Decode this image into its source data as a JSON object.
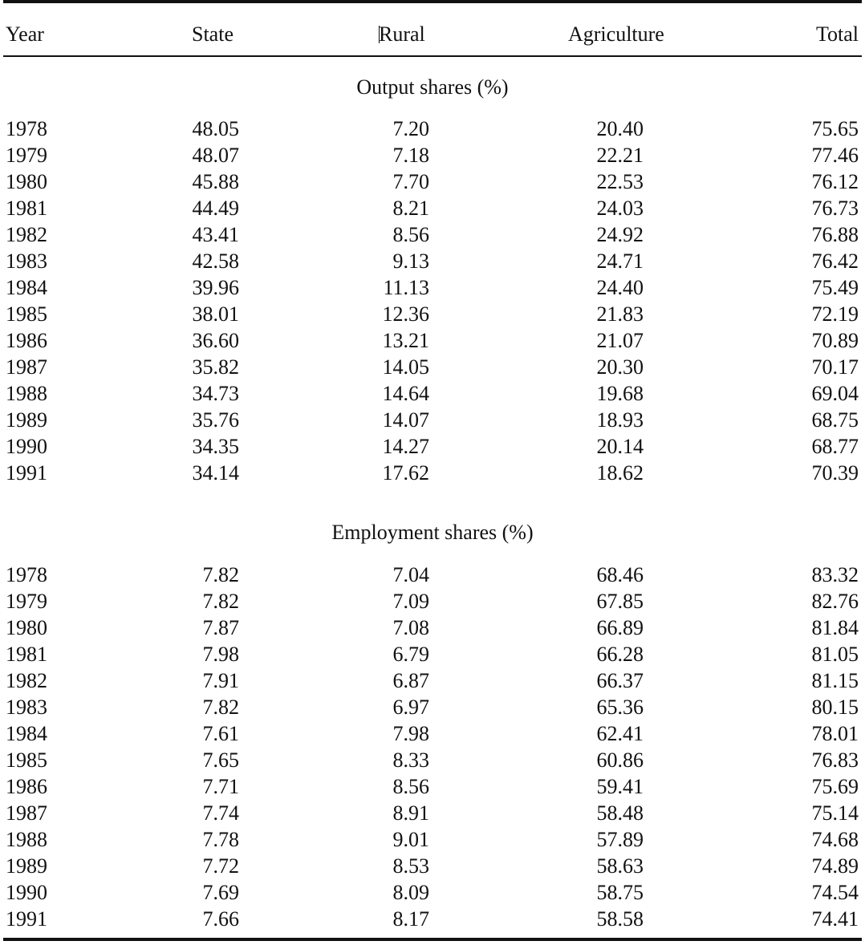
{
  "table": {
    "headers": {
      "year": "Year",
      "state": "State",
      "rural": "Rural",
      "agriculture": "Agriculture",
      "total": "Total"
    },
    "sections": [
      {
        "title": "Output shares (%)",
        "rows": [
          [
            "1978",
            "48.05",
            "7.20",
            "20.40",
            "75.65"
          ],
          [
            "1979",
            "48.07",
            "7.18",
            "22.21",
            "77.46"
          ],
          [
            "1980",
            "45.88",
            "7.70",
            "22.53",
            "76.12"
          ],
          [
            "1981",
            "44.49",
            "8.21",
            "24.03",
            "76.73"
          ],
          [
            "1982",
            "43.41",
            "8.56",
            "24.92",
            "76.88"
          ],
          [
            "1983",
            "42.58",
            "9.13",
            "24.71",
            "76.42"
          ],
          [
            "1984",
            "39.96",
            "11.13",
            "24.40",
            "75.49"
          ],
          [
            "1985",
            "38.01",
            "12.36",
            "21.83",
            "72.19"
          ],
          [
            "1986",
            "36.60",
            "13.21",
            "21.07",
            "70.89"
          ],
          [
            "1987",
            "35.82",
            "14.05",
            "20.30",
            "70.17"
          ],
          [
            "1988",
            "34.73",
            "14.64",
            "19.68",
            "69.04"
          ],
          [
            "1989",
            "35.76",
            "14.07",
            "18.93",
            "68.75"
          ],
          [
            "1990",
            "34.35",
            "14.27",
            "20.14",
            "68.77"
          ],
          [
            "1991",
            "34.14",
            "17.62",
            "18.62",
            "70.39"
          ]
        ]
      },
      {
        "title": "Employment shares (%)",
        "rows": [
          [
            "1978",
            "7.82",
            "7.04",
            "68.46",
            "83.32"
          ],
          [
            "1979",
            "7.82",
            "7.09",
            "67.85",
            "82.76"
          ],
          [
            "1980",
            "7.87",
            "7.08",
            "66.89",
            "81.84"
          ],
          [
            "1981",
            "7.98",
            "6.79",
            "66.28",
            "81.05"
          ],
          [
            "1982",
            "7.91",
            "6.87",
            "66.37",
            "81.15"
          ],
          [
            "1983",
            "7.82",
            "6.97",
            "65.36",
            "80.15"
          ],
          [
            "1984",
            "7.61",
            "7.98",
            "62.41",
            "78.01"
          ],
          [
            "1985",
            "7.65",
            "8.33",
            "60.86",
            "76.83"
          ],
          [
            "1986",
            "7.71",
            "8.56",
            "59.41",
            "75.69"
          ],
          [
            "1987",
            "7.74",
            "8.91",
            "58.48",
            "75.14"
          ],
          [
            "1988",
            "7.78",
            "9.01",
            "57.89",
            "74.68"
          ],
          [
            "1989",
            "7.72",
            "8.53",
            "58.63",
            "74.89"
          ],
          [
            "1990",
            "7.69",
            "8.09",
            "58.75",
            "74.54"
          ],
          [
            "1991",
            "7.66",
            "8.17",
            "58.58",
            "74.41"
          ]
        ]
      }
    ]
  }
}
